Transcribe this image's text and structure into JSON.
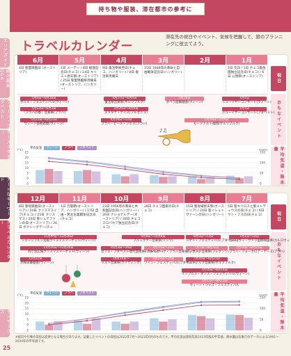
{
  "header": {
    "band": "持ち物や服装、滞在都市の参考に",
    "title": "トラベルカレンダー",
    "intro": "滞在先の祝日やイベント、気候を把握して、旅のプランニングに役立てよう。"
  },
  "side_tabs": [
    {
      "label": "エリアガイド",
      "color": "#e8a7b4"
    },
    {
      "label": "旅の基本Q&A",
      "color": "#e8a7b4"
    },
    {
      "label": "ウィーン・ブダペスト",
      "color": "#e8a7b4"
    },
    {
      "label": "ケーススタディ",
      "color": "#e8a7b4"
    },
    {
      "label": "アートなキーワード",
      "color": "#5b3a50"
    },
    {
      "label": "トラベルカレンダー",
      "color": "#c34761"
    },
    {
      "label": "インデックス",
      "color": "#e8a7b4"
    }
  ],
  "labels": {
    "holiday": "祝日",
    "events": "おもなイベント",
    "climate": "平均気温・降水量",
    "legend_title": "平均気温",
    "legend_vienna": "ウィーン",
    "legend_prague": "プラハ",
    "legend_budapest": "ブダペスト",
    "rain_title": "降水量",
    "axis_c": "(℃)",
    "axis_mm": "(mm)"
  },
  "top": {
    "months": [
      "6月",
      "5月",
      "4月",
      "3月",
      "2月",
      "1月"
    ],
    "holidays": [
      "4日 聖霊降臨日 (オーストリア)",
      "1日 メーデー / 8日 解放記念日(チェコ) / 14日 キリスト昇天祭(オーストリア) / 25日 聖霊降臨祭月曜日(オーストリア、ハンガリー)",
      "9日 復活祭後翌日(チェコ、ハンガリー) / 8日 復活祭月曜日",
      "15日 1848年の革命と自由戦争記念日(ハンガリー)",
      "",
      "1日 元日 / 1日 チェコ再生国独立記念日(チェコ) / 6日 公現祭(オーストリア)"
    ],
    "events": [
      {
        "bar": "5月6日〜6月28日",
        "name": "グルメ・フェスティバル(ウィーン)"
      },
      {
        "bar": "5月12日〜6月3日",
        "name": "『プラハの春』音楽祭(プラハ)"
      },
      {
        "bar": "5月15日〜6月21日",
        "name": "ウィーン芸術週間(ウィーン)"
      },
      {
        "bar": "4月27日〜6月4日",
        "name": "復活祭音楽祭(ザルツブルク)"
      },
      {
        "bar": "2月26日〜4月9日",
        "name": "スメタナ・デイズ(プルゼニュ)"
      },
      {
        "bar": "4月16日〜12日",
        "name": "ブラハ・ビール・フェス(プラハ)"
      },
      {
        "bar": "2月16日",
        "name": "オペラ座舞踏会(ウィーン)"
      },
      {
        "bar": "1月1日",
        "name": "ニューイヤーコンサート(ウィーン)"
      },
      {
        "bar": "1月1日",
        "name": "ニューイヤーコンサート(ブダペスト)"
      },
      {
        "bar": "1月19日〜2月4日",
        "name": "モーツァルト週間(ザルツブルク)"
      }
    ],
    "chart_data": {
      "type": "bar",
      "categories": [
        "6月",
        "5月",
        "4月",
        "3月",
        "2月",
        "1月"
      ],
      "ylim": [
        -5,
        25
      ],
      "rain_lim": [
        0,
        150
      ],
      "series": [
        {
          "name": "ウィーン",
          "values": [
            18.9,
            15.5,
            10.6,
            5.7,
            2.2,
            0.4
          ],
          "rain": [
            65,
            60,
            45,
            40,
            35,
            38
          ]
        },
        {
          "name": "プラハ",
          "values": [
            16.3,
            13.2,
            8.8,
            4.0,
            0.9,
            -0.9
          ],
          "rain": [
            70,
            65,
            35,
            32,
            22,
            25
          ]
        },
        {
          "name": "ブダペスト",
          "values": [
            19.8,
            16.3,
            11.6,
            6.6,
            2.7,
            0.4
          ],
          "rain": [
            60,
            58,
            45,
            35,
            30,
            35
          ]
        }
      ]
    }
  },
  "bottom": {
    "months": [
      "12月",
      "11月",
      "10月",
      "9月",
      "8月",
      "7月"
    ],
    "holidays": [
      "8日 聖母受胎日(オーストリア) / 24日 クリスマスイブ(チェコ) / 25日 クリスマス / 26日 聖シュテファンの日(オーストリア) / 26日 ボクシングデー(チェコ、ハンガリー)",
      "1日 万聖節(オーストリア、ハンガリー) / 17日 自由・民主主義闘争記念日(チェコ)",
      "23日 1956年の革命と共和国記念日(ハンガリー) / 26日 ナショナルデー(オーストリア) / 28日 チェコスロバキア独立記念日(チェコ)",
      "28日 チェコ国家の日(チェコ)",
      "15日 聖母被昇天祭(オーストリア) / 20日 聖イシュトヴァーンの日(ハンガリー)",
      "5日 聖キリロスと聖メトディウスの日(チェコ) / 6日 ヤン・フスの日(チェコ)"
    ],
    "events": [
      {
        "bar": "11月中旬〜12月26日",
        "name": "シェーンブルン宮殿クリスマスマーケット(ウィーン)"
      },
      {
        "bar": "11月16日〜12月26日",
        "name": "市庁舎広場クリスマスマーケット(ウィーン)"
      },
      {
        "bar": "12月31日",
        "name": "大晦日舞踏会(ウィーン)"
      },
      {
        "bar": "9月8日〜10月8日",
        "name": "ブルックナー音楽祭(リンツ)"
      },
      {
        "bar": "10月3日〜16日",
        "name": "カフェ・ブダペスト現代芸術祭(ブダペスト)"
      },
      {
        "bar": "10月19日〜",
        "name": "リスト音楽祭(ライディング)"
      },
      {
        "bar": "9月25日〜23日",
        "name": "ドヴォルザーク・プラハ音楽祭(プラハ)"
      },
      {
        "bar": "9月12日〜14日",
        "name": "ワイン・フェスティバル(ブダペスト)"
      },
      {
        "bar": "8月5日〜13日",
        "name": "シゲト・フェスティバル(ブダペスト)"
      },
      {
        "bar": "7月16日〜8月21日",
        "name": "ザルツブルク音楽祭(ザルツブルク)"
      },
      {
        "bar": "7月7日〜8月31日",
        "name": "ブレゲンツ音楽祭(ブレゲンツ)"
      },
      {
        "bar": "7月16日〜8月14日",
        "name": "インプルス・ダンス・フェスティバル(ウィーン)"
      },
      {
        "bar": "7月12日〜8月13日",
        "name": "ウィーン・ジャズ・フェスティバル"
      },
      {
        "bar": "7月14日〜8月25日",
        "name": "プラハ・フォークロア・デーズ(プラハ)"
      },
      {
        "bar": "7月1日〜14日",
        "name": "カルロヴィ・ヴァリ国際映画祭(カルロヴィ・ヴァリ)"
      }
    ],
    "chart_data": {
      "type": "bar",
      "categories": [
        "12月",
        "11月",
        "10月",
        "9月",
        "8月",
        "7月"
      ],
      "ylim": [
        -5,
        25
      ],
      "rain_lim": [
        0,
        150
      ],
      "series": [
        {
          "name": "ウィーン",
          "values": [
            1.2,
            5.5,
            10.8,
            15.9,
            20.6,
            21.0
          ],
          "rain": [
            40,
            45,
            40,
            55,
            70,
            72
          ]
        },
        {
          "name": "プラハ",
          "values": [
            0.1,
            3.7,
            8.8,
            13.5,
            18.0,
            18.2
          ],
          "rain": [
            25,
            30,
            30,
            40,
            65,
            70
          ]
        },
        {
          "name": "ブダペスト",
          "values": [
            1.2,
            5.6,
            11.4,
            16.8,
            21.3,
            21.8
          ],
          "rain": [
            42,
            55,
            40,
            50,
            55,
            58
          ]
        }
      ]
    }
  },
  "footer_note": "※祝日や行事の日程は変更となる場合があります。記載したイベントの日程は2022年7月〜2023年6月のものです。平均気温は理科年表2023年版の平年値、降水量は気象庁のデータによる1991〜2020年の平年値です。",
  "page_number": "25",
  "colors": {
    "accent": "#c34761",
    "vienna": "#7fb3d8",
    "prague": "#c34761",
    "budapest": "#b090c6"
  }
}
